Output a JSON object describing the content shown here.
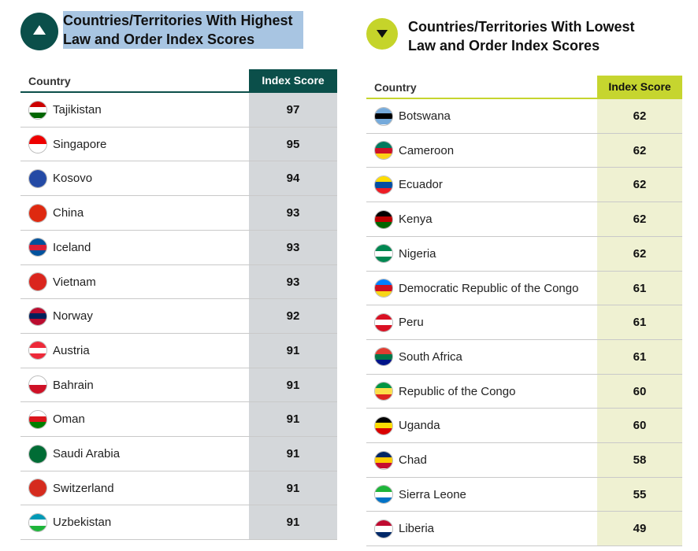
{
  "left": {
    "title": "Countries/Territories With Highest Law and Order Index Scores",
    "columns": [
      "Country",
      "Index Score"
    ],
    "rows": [
      [
        "Tajikistan",
        97
      ],
      [
        "Singapore",
        95
      ],
      [
        "Kosovo",
        94
      ],
      [
        "China",
        93
      ],
      [
        "Iceland",
        93
      ],
      [
        "Vietnam",
        93
      ],
      [
        "Norway",
        92
      ],
      [
        "Austria",
        91
      ],
      [
        "Bahrain",
        91
      ],
      [
        "Oman",
        91
      ],
      [
        "Saudi Arabia",
        91
      ],
      [
        "Switzerland",
        91
      ],
      [
        "Uzbekistan",
        91
      ]
    ]
  },
  "right": {
    "title": "Countries/Territories With Lowest Law and Order Index Scores",
    "columns": [
      "Country",
      "Index Score"
    ],
    "rows": [
      [
        "Botswana",
        62
      ],
      [
        "Cameroon",
        62
      ],
      [
        "Ecuador",
        62
      ],
      [
        "Kenya",
        62
      ],
      [
        "Nigeria",
        62
      ],
      [
        "Democratic Republic of the Congo",
        61
      ],
      [
        "Peru",
        61
      ],
      [
        "South Africa",
        61
      ],
      [
        "Republic of the Congo",
        60
      ],
      [
        "Uganda",
        60
      ],
      [
        "Chad",
        58
      ],
      [
        "Sierra Leone",
        55
      ],
      [
        "Liberia",
        49
      ]
    ]
  }
}
